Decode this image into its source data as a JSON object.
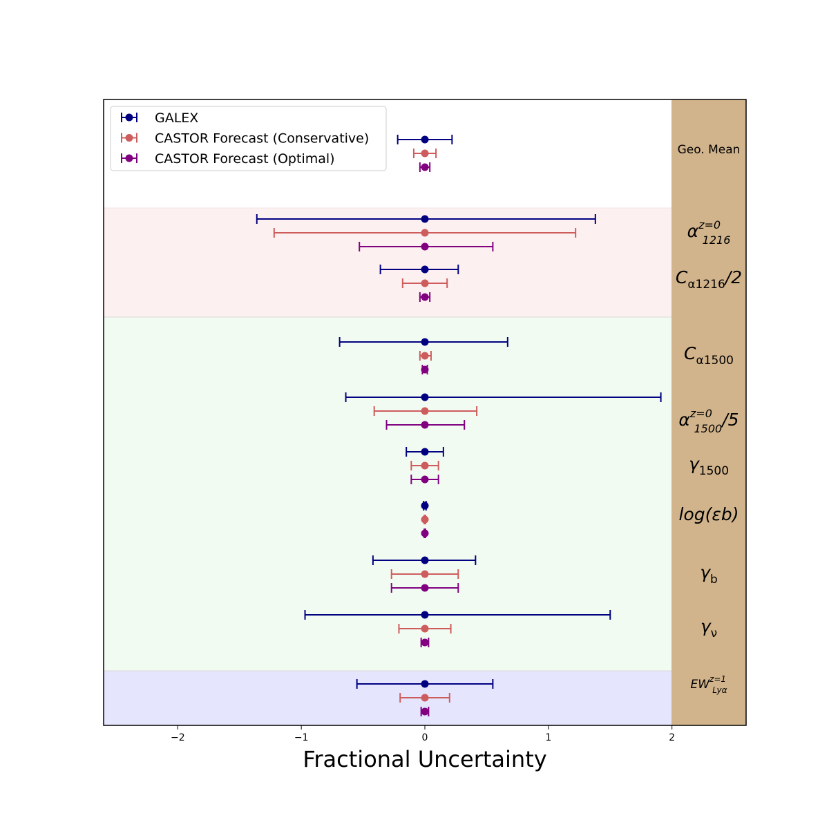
{
  "chart_data": {
    "type": "scatter",
    "subtype": "horizontal error bars",
    "xlabel": "Fractional Uncertainty",
    "xlim": [
      -2.6,
      2.6
    ],
    "x_ticks": [
      -2,
      -1,
      0,
      1,
      2
    ],
    "x_tick_labels": [
      "−2",
      "−1",
      "0",
      "1",
      "2"
    ],
    "grid": false,
    "legend_position": "top-left",
    "legend": [
      {
        "name": "GALEX",
        "color": "#000080"
      },
      {
        "name": "CASTOR Forecast (Conservative)",
        "color": "#cd5c5c"
      },
      {
        "name": "CASTOR Forecast (Optimal)",
        "color": "#800080"
      }
    ],
    "bands": [
      {
        "color": "#fdf0f0",
        "params": [
          "alpha1216",
          "calpha1216"
        ]
      },
      {
        "color": "#f2fbf2",
        "params": [
          "calpha1500",
          "alpha1500",
          "gamma1500",
          "logeb",
          "gammab",
          "gammanu"
        ]
      },
      {
        "color": "#e5e5fd",
        "params": [
          "ewlya"
        ]
      }
    ],
    "label_strip_color": "#d2b48c",
    "parameters": [
      {
        "id": "geomean",
        "label": "Geo. Mean",
        "galex": [
          -0.22,
          0.22
        ],
        "conservative": [
          -0.09,
          0.09
        ],
        "optimal": [
          -0.04,
          0.04
        ]
      },
      {
        "id": "alpha1216",
        "label": "α",
        "sup": "z=0",
        "sub": "1216",
        "galex": [
          -1.36,
          1.38
        ],
        "conservative": [
          -1.22,
          1.22
        ],
        "optimal": [
          -0.53,
          0.55
        ]
      },
      {
        "id": "calpha1216",
        "label": "C",
        "sub": "α1216",
        "suffix": "/2",
        "galex": [
          -0.36,
          0.27
        ],
        "conservative": [
          -0.18,
          0.18
        ],
        "optimal": [
          -0.04,
          0.04
        ]
      },
      {
        "id": "calpha1500",
        "label": "C",
        "sub": "α1500",
        "galex": [
          -0.69,
          0.67
        ],
        "conservative": [
          -0.04,
          0.05
        ],
        "optimal": [
          -0.02,
          0.02
        ]
      },
      {
        "id": "alpha1500",
        "label": "α",
        "sup": "z=0",
        "sub": "1500",
        "suffix": "/5",
        "galex": [
          -0.64,
          1.91
        ],
        "conservative": [
          -0.41,
          0.42
        ],
        "optimal": [
          -0.31,
          0.32
        ]
      },
      {
        "id": "gamma1500",
        "label": "γ",
        "sub": "1500",
        "galex": [
          -0.15,
          0.15
        ],
        "conservative": [
          -0.11,
          0.11
        ],
        "optimal": [
          -0.11,
          0.11
        ]
      },
      {
        "id": "logeb",
        "label": "log(εb)",
        "galex": [
          -0.01,
          0.01
        ],
        "conservative": [
          -0.005,
          0.005
        ],
        "optimal": [
          -0.005,
          0.005
        ]
      },
      {
        "id": "gammab",
        "label": "γ",
        "sub": "b",
        "galex": [
          -0.42,
          0.41
        ],
        "conservative": [
          -0.27,
          0.27
        ],
        "optimal": [
          -0.27,
          0.27
        ]
      },
      {
        "id": "gammanu",
        "label": "γ",
        "sub": "ν",
        "galex": [
          -0.97,
          1.5
        ],
        "conservative": [
          -0.21,
          0.21
        ],
        "optimal": [
          -0.03,
          0.03
        ]
      },
      {
        "id": "ewlya",
        "label": "EW",
        "sup": "z=1",
        "sub": "Lyα",
        "galex": [
          -0.55,
          0.55
        ],
        "conservative": [
          -0.2,
          0.2
        ],
        "optimal": [
          -0.03,
          0.03
        ]
      }
    ]
  }
}
